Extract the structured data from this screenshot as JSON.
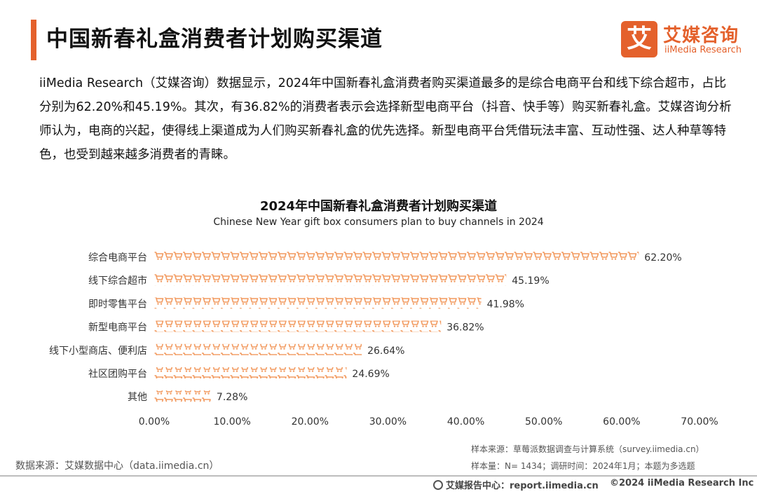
{
  "header": {
    "title": "中国新春礼盒消费者计划购买渠道",
    "logo_mark": "艾",
    "logo_cn": "艾媒咨询",
    "logo_en": "iiMedia Research"
  },
  "intro": "iiMedia Research（艾媒咨询）数据显示，2024年中国新春礼盒消费者购买渠道最多的是综合电商平台和线下综合超市，占比分别为62.20%和45.19%。其次，有36.82%的消费者表示会选择新型电商平台（抖音、快手等）购买新春礼盒。艾媒咨询分析师认为，电商的兴起，使得线上渠道成为人们购买新春礼盒的优先选择。新型电商平台凭借玩法丰富、互动性强、达人种草等特色，也受到越来越多消费者的青睐。",
  "chart_data": {
    "type": "bar",
    "orientation": "horizontal",
    "title": "2024年中国新春礼盒消费者计划购买渠道",
    "subtitle": "Chinese New Year gift box consumers plan to buy channels in 2024",
    "categories": [
      "综合电商平台",
      "线下综合超市",
      "即时零售平台",
      "新型电商平台",
      "线下小型商店、便利店",
      "社区团购平台",
      "其他"
    ],
    "values": [
      62.2,
      45.19,
      41.98,
      36.82,
      26.64,
      24.69,
      7.28
    ],
    "value_labels": [
      "62.20%",
      "45.19%",
      "41.98%",
      "36.82%",
      "26.64%",
      "24.69%",
      "7.28%"
    ],
    "xlim": [
      0,
      70
    ],
    "xticks": [
      "0.00%",
      "10.00%",
      "20.00%",
      "30.00%",
      "40.00%",
      "50.00%",
      "60.00%",
      "70.00%"
    ],
    "bar_style": "shopping-cart-icons",
    "bar_color": "#f29a5f",
    "grid": false
  },
  "sources": {
    "left": "数据来源：艾媒数据中心（data.iimedia.cn）",
    "right_line1": "样本来源：草莓派数据调查与计算系统（survey.iimedia.cn）",
    "right_line2": "样本量：N= 1434；调研时间：2024年1月；本题为多选题"
  },
  "footer": {
    "left": "艾媒报告中心：report.iimedia.cn",
    "right": "©2024 iiMedia Research Inc"
  },
  "colors": {
    "accent": "#e4612c",
    "bar": "#f29a5f"
  }
}
